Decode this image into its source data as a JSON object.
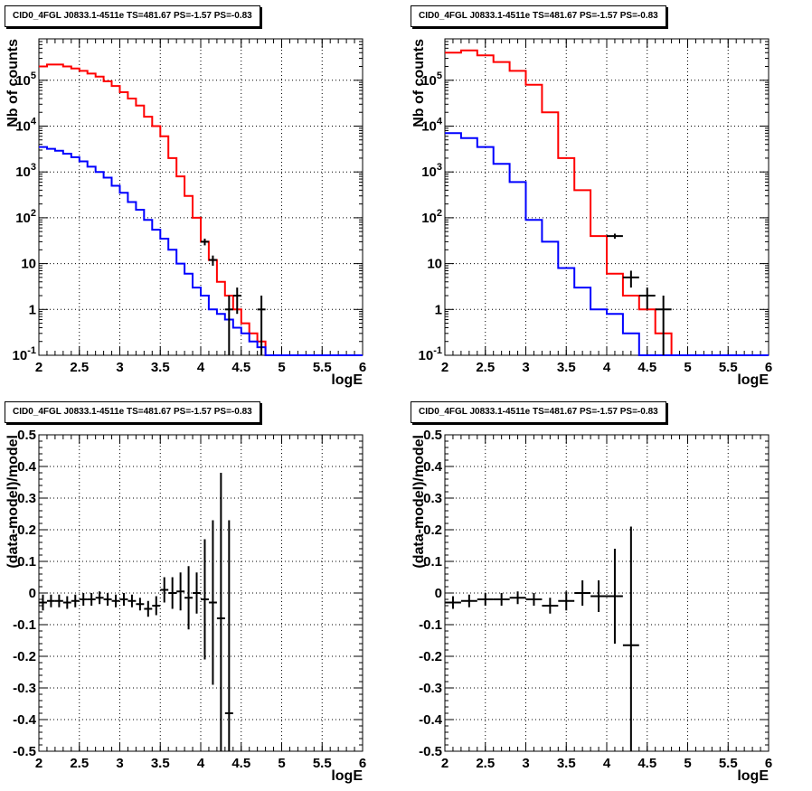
{
  "chart_data": [
    {
      "type": "histogram-line",
      "title": "CID0_4FGL J0833.1-4511e TS=481.67 PS=-1.57 PS=-0.83",
      "xlabel": "logE",
      "ylabel": "Nb of counts",
      "xlim": [
        2,
        6
      ],
      "ylim": [
        0.1,
        800000
      ],
      "yscale": "log",
      "grid": true,
      "x_ticks": [
        "2",
        "2.5",
        "3",
        "3.5",
        "4",
        "4.5",
        "5",
        "5.5",
        "6"
      ],
      "y_ticks": [
        "10^{-1}",
        "1",
        "10",
        "10^{2}",
        "10^{3}",
        "10^{4}",
        "10^{5}"
      ],
      "bin_edges": [
        2.0,
        2.1,
        2.2,
        2.3,
        2.4,
        2.5,
        2.6,
        2.7,
        2.8,
        2.9,
        3.0,
        3.1,
        3.2,
        3.3,
        3.4,
        3.5,
        3.6,
        3.7,
        3.8,
        3.9,
        4.0,
        4.1,
        4.2,
        4.3,
        4.4,
        4.5,
        4.6,
        4.7,
        4.8,
        4.9,
        5.0,
        5.1,
        5.2,
        5.3,
        5.4,
        5.5,
        5.6,
        5.7,
        5.8,
        5.9,
        6.0
      ],
      "series": [
        {
          "color": "#ff0000",
          "values": [
            200000,
            220000,
            220000,
            200000,
            180000,
            160000,
            140000,
            120000,
            95000,
            75000,
            55000,
            40000,
            28000,
            16000,
            10000,
            6000,
            2000,
            800,
            300,
            100,
            30,
            12,
            4,
            2,
            1,
            0.5,
            0.3,
            0.2,
            0.1,
            0.1,
            0.1,
            0.1,
            0.1,
            0.1,
            0.1,
            0.1,
            0.1,
            0.1,
            0.1,
            0.1
          ]
        },
        {
          "color": "#0000ff",
          "values": [
            3500,
            3200,
            2900,
            2500,
            2100,
            1700,
            1300,
            1000,
            750,
            500,
            350,
            220,
            150,
            90,
            55,
            35,
            20,
            10,
            6,
            3,
            2,
            1,
            0.8,
            0.6,
            0.4,
            0.3,
            0.2,
            0.15,
            0.1,
            0.1,
            0.1,
            0.1,
            0.1,
            0.1,
            0.1,
            0.1,
            0.1,
            0.1,
            0.1,
            0.1
          ]
        }
      ],
      "data_points": [
        {
          "x": 4.05,
          "y": 30,
          "ylo": 25,
          "yhi": 35
        },
        {
          "x": 4.15,
          "y": 12,
          "ylo": 9,
          "yhi": 15
        },
        {
          "x": 4.35,
          "y": 1,
          "ylo": 0.1,
          "yhi": 2
        },
        {
          "x": 4.45,
          "y": 2,
          "ylo": 0.8,
          "yhi": 3
        },
        {
          "x": 4.75,
          "y": 1,
          "ylo": 0.1,
          "yhi": 2
        }
      ]
    },
    {
      "type": "histogram-line",
      "title": "CID0_4FGL J0833.1-4511e TS=481.67 PS=-1.57 PS=-0.83",
      "xlabel": "logE",
      "ylabel": "Nb of counts",
      "xlim": [
        2,
        6
      ],
      "ylim": [
        0.1,
        800000
      ],
      "yscale": "log",
      "grid": true,
      "x_ticks": [
        "2",
        "2.5",
        "3",
        "3.5",
        "4",
        "4.5",
        "5",
        "5.5",
        "6"
      ],
      "y_ticks": [
        "10^{-1}",
        "1",
        "10",
        "10^{2}",
        "10^{3}",
        "10^{4}",
        "10^{5}"
      ],
      "bin_edges": [
        2.0,
        2.2,
        2.4,
        2.6,
        2.8,
        3.0,
        3.2,
        3.4,
        3.6,
        3.8,
        4.0,
        4.2,
        4.4,
        4.6,
        4.8,
        5.0,
        5.2,
        5.4,
        5.6,
        5.8,
        6.0
      ],
      "series": [
        {
          "color": "#ff0000",
          "values": [
            400000,
            450000,
            350000,
            250000,
            160000,
            80000,
            20000,
            2000,
            400,
            40,
            6,
            2,
            1,
            0.3,
            0.1,
            0.1,
            0.1,
            0.1,
            0.1,
            0.1
          ]
        },
        {
          "color": "#0000ff",
          "values": [
            7000,
            5500,
            3500,
            1500,
            600,
            90,
            30,
            8,
            3,
            1,
            0.8,
            0.3,
            0.1,
            0.1,
            0.1,
            0.1,
            0.1,
            0.1,
            0.1,
            0.1
          ]
        }
      ],
      "data_points": [
        {
          "x": 4.1,
          "y": 40,
          "ylo": 35,
          "yhi": 45
        },
        {
          "x": 4.3,
          "y": 5,
          "ylo": 3,
          "yhi": 7
        },
        {
          "x": 4.5,
          "y": 2,
          "ylo": 1,
          "yhi": 3
        },
        {
          "x": 4.7,
          "y": 1,
          "ylo": 0.1,
          "yhi": 2
        }
      ]
    },
    {
      "type": "scatter-errorbar",
      "title": "CID0_4FGL J0833.1-4511e TS=481.67 PS=-1.57 PS=-0.83",
      "xlabel": "logE",
      "ylabel": "(data-model)/model",
      "xlim": [
        2,
        6
      ],
      "ylim": [
        -0.5,
        0.5
      ],
      "grid": true,
      "x_ticks": [
        "2",
        "2.5",
        "3",
        "3.5",
        "4",
        "4.5",
        "5",
        "5.5",
        "6"
      ],
      "y_ticks": [
        "-0.5",
        "-0.4",
        "-0.3",
        "-0.2",
        "-0.1",
        "0",
        "0.1",
        "0.2",
        "0.3",
        "0.4",
        "0.5"
      ],
      "points": [
        {
          "x": 2.05,
          "y": -0.03,
          "xerr": 0.05,
          "yerr": 0.025
        },
        {
          "x": 2.15,
          "y": -0.025,
          "xerr": 0.05,
          "yerr": 0.02
        },
        {
          "x": 2.25,
          "y": -0.025,
          "xerr": 0.05,
          "yerr": 0.02
        },
        {
          "x": 2.35,
          "y": -0.03,
          "xerr": 0.05,
          "yerr": 0.02
        },
        {
          "x": 2.45,
          "y": -0.025,
          "xerr": 0.05,
          "yerr": 0.02
        },
        {
          "x": 2.55,
          "y": -0.02,
          "xerr": 0.05,
          "yerr": 0.02
        },
        {
          "x": 2.65,
          "y": -0.02,
          "xerr": 0.05,
          "yerr": 0.02
        },
        {
          "x": 2.75,
          "y": -0.015,
          "xerr": 0.05,
          "yerr": 0.02
        },
        {
          "x": 2.85,
          "y": -0.02,
          "xerr": 0.05,
          "yerr": 0.02
        },
        {
          "x": 2.95,
          "y": -0.025,
          "xerr": 0.05,
          "yerr": 0.02
        },
        {
          "x": 3.05,
          "y": -0.02,
          "xerr": 0.05,
          "yerr": 0.02
        },
        {
          "x": 3.15,
          "y": -0.025,
          "xerr": 0.05,
          "yerr": 0.02
        },
        {
          "x": 3.25,
          "y": -0.035,
          "xerr": 0.05,
          "yerr": 0.02
        },
        {
          "x": 3.35,
          "y": -0.05,
          "xerr": 0.05,
          "yerr": 0.025
        },
        {
          "x": 3.45,
          "y": -0.04,
          "xerr": 0.05,
          "yerr": 0.03
        },
        {
          "x": 3.55,
          "y": 0.01,
          "xerr": 0.05,
          "yerr": 0.04
        },
        {
          "x": 3.65,
          "y": 0.0,
          "xerr": 0.05,
          "yerr": 0.05
        },
        {
          "x": 3.75,
          "y": 0.005,
          "xerr": 0.05,
          "yerr": 0.06
        },
        {
          "x": 3.85,
          "y": -0.015,
          "xerr": 0.05,
          "yerr": 0.1
        },
        {
          "x": 3.95,
          "y": 0.0,
          "xerr": 0.05,
          "yerr": 0.065
        },
        {
          "x": 4.05,
          "y": -0.02,
          "xerr": 0.05,
          "yerr": 0.19
        },
        {
          "x": 4.15,
          "y": -0.03,
          "xerr": 0.05,
          "yerr": 0.26
        },
        {
          "x": 4.25,
          "y": -0.08,
          "xerr": 0.05,
          "yerr": 0.46
        },
        {
          "x": 4.35,
          "y": -0.38,
          "xerr": 0.05,
          "yerr": 0.61
        }
      ]
    },
    {
      "type": "scatter-errorbar",
      "title": "CID0_4FGL J0833.1-4511e TS=481.67 PS=-1.57 PS=-0.83",
      "xlabel": "logE",
      "ylabel": "(data-model)/model",
      "xlim": [
        2,
        6
      ],
      "ylim": [
        -0.5,
        0.5
      ],
      "grid": true,
      "x_ticks": [
        "2",
        "2.5",
        "3",
        "3.5",
        "4",
        "4.5",
        "5",
        "5.5",
        "6"
      ],
      "y_ticks": [
        "-0.5",
        "-0.4",
        "-0.3",
        "-0.2",
        "-0.1",
        "0",
        "0.1",
        "0.2",
        "0.3",
        "0.4",
        "0.5"
      ],
      "points": [
        {
          "x": 2.1,
          "y": -0.03,
          "xerr": 0.1,
          "yerr": 0.02
        },
        {
          "x": 2.3,
          "y": -0.025,
          "xerr": 0.1,
          "yerr": 0.02
        },
        {
          "x": 2.5,
          "y": -0.02,
          "xerr": 0.1,
          "yerr": 0.02
        },
        {
          "x": 2.7,
          "y": -0.02,
          "xerr": 0.1,
          "yerr": 0.02
        },
        {
          "x": 2.9,
          "y": -0.015,
          "xerr": 0.1,
          "yerr": 0.02
        },
        {
          "x": 3.1,
          "y": -0.02,
          "xerr": 0.1,
          "yerr": 0.02
        },
        {
          "x": 3.3,
          "y": -0.04,
          "xerr": 0.1,
          "yerr": 0.025
        },
        {
          "x": 3.5,
          "y": -0.025,
          "xerr": 0.1,
          "yerr": 0.03
        },
        {
          "x": 3.7,
          "y": 0.0,
          "xerr": 0.1,
          "yerr": 0.04
        },
        {
          "x": 3.9,
          "y": -0.01,
          "xerr": 0.1,
          "yerr": 0.05
        },
        {
          "x": 4.1,
          "y": -0.01,
          "xerr": 0.1,
          "yerr": 0.15
        },
        {
          "x": 4.3,
          "y": -0.165,
          "xerr": 0.1,
          "yerr": 0.375
        }
      ]
    }
  ]
}
